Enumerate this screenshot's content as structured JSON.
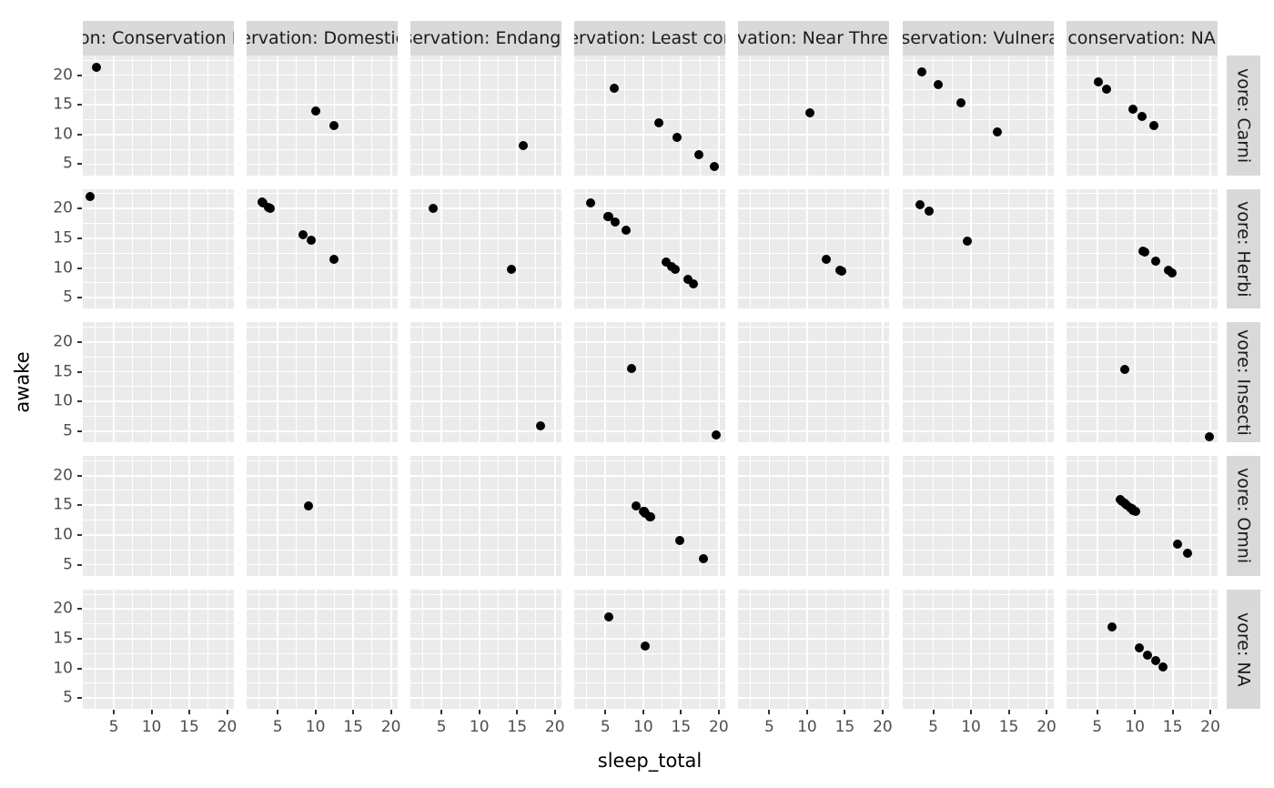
{
  "chart_data": {
    "type": "scatter",
    "title": "",
    "xlabel": "sleep_total",
    "ylabel": "awake",
    "point_shape": "filled-circle",
    "point_color": "#000000",
    "legend": "none",
    "grid": "white major and minor gridlines on gray panels",
    "xlim": [
      0.9,
      20.9
    ],
    "ylim": [
      3.13,
      23.3
    ],
    "x_ticks": [
      5,
      10,
      15,
      20
    ],
    "y_ticks": [
      5,
      10,
      15,
      20
    ],
    "x_tick_labels": [
      "5",
      "10",
      "15",
      "20"
    ],
    "y_tick_labels": [
      "5",
      "10",
      "15",
      "20"
    ],
    "x_minor_ticks": [
      2.5,
      7.5,
      12.5,
      17.5
    ],
    "y_minor_ticks": [
      7.5,
      12.5,
      17.5,
      22.5
    ],
    "facet": {
      "col_variable": "conservation",
      "row_variable": "vore",
      "col_labels": [
        "conservation: Conservation Dependent",
        "conservation: Domesticated",
        "conservation: Endangered",
        "conservation: Least concern",
        "conservation: Near Threatened",
        "conservation: Vulnerable",
        "conservation: NA"
      ],
      "row_labels": [
        "vore: Carni",
        "vore: Herbi",
        "vore: Insecti",
        "vore: Omni",
        "vore: NA"
      ]
    },
    "panels": [
      {
        "row": "vore: Carni",
        "cols": [
          {
            "points": [
              [
                2.7,
                21.3
              ]
            ]
          },
          {
            "points": [
              [
                10.1,
                13.9
              ],
              [
                12.5,
                11.5
              ]
            ]
          },
          {
            "points": [
              [
                15.8,
                8.2
              ]
            ]
          },
          {
            "points": [
              [
                6.2,
                17.8
              ],
              [
                12.1,
                11.9
              ],
              [
                14.5,
                9.5
              ],
              [
                17.4,
                6.6
              ],
              [
                19.4,
                4.6
              ]
            ]
          },
          {
            "points": [
              [
                10.4,
                13.6
              ]
            ]
          },
          {
            "points": [
              [
                3.5,
                20.5
              ],
              [
                5.6,
                18.4
              ],
              [
                8.7,
                15.3
              ],
              [
                13.5,
                10.5
              ]
            ]
          },
          {
            "points": [
              [
                5.2,
                18.8
              ],
              [
                6.3,
                17.7
              ],
              [
                9.8,
                14.2
              ],
              [
                11.0,
                13.0
              ],
              [
                12.5,
                11.5
              ]
            ]
          }
        ]
      },
      {
        "row": "vore: Herbi",
        "cols": [
          {
            "points": [
              [
                1.9,
                22.1
              ]
            ]
          },
          {
            "points": [
              [
                2.9,
                21.1
              ],
              [
                3.1,
                20.9
              ],
              [
                3.8,
                20.2
              ],
              [
                4.0,
                20.0
              ],
              [
                8.4,
                15.6
              ],
              [
                9.4,
                14.6
              ],
              [
                12.5,
                11.5
              ]
            ]
          },
          {
            "points": [
              [
                3.9,
                20.1
              ],
              [
                14.3,
                9.7
              ]
            ]
          },
          {
            "points": [
              [
                3.0,
                21.0
              ],
              [
                5.3,
                18.7
              ],
              [
                5.3,
                18.7
              ],
              [
                5.4,
                18.6
              ],
              [
                6.3,
                17.7
              ],
              [
                7.7,
                16.3
              ],
              [
                13.0,
                11.0
              ],
              [
                13.8,
                10.2
              ],
              [
                14.2,
                9.8
              ],
              [
                15.9,
                8.1
              ],
              [
                16.6,
                7.4
              ]
            ]
          },
          {
            "points": [
              [
                12.5,
                11.5
              ],
              [
                14.4,
                9.6
              ],
              [
                14.6,
                9.4
              ]
            ]
          },
          {
            "points": [
              [
                3.3,
                20.7
              ],
              [
                4.4,
                19.6
              ],
              [
                9.5,
                14.5
              ]
            ]
          },
          {
            "points": [
              [
                11.1,
                12.9
              ],
              [
                11.3,
                12.7
              ],
              [
                12.8,
                11.2
              ],
              [
                14.4,
                9.6
              ],
              [
                14.9,
                9.1
              ]
            ]
          }
        ]
      },
      {
        "row": "vore: Insecti",
        "cols": [
          {
            "points": []
          },
          {
            "points": []
          },
          {
            "points": [
              [
                18.1,
                5.9
              ]
            ]
          },
          {
            "points": [
              [
                8.4,
                15.6
              ],
              [
                19.7,
                4.3
              ]
            ]
          },
          {
            "points": []
          },
          {
            "points": []
          },
          {
            "points": [
              [
                8.6,
                15.4
              ],
              [
                19.9,
                4.1
              ]
            ]
          }
        ]
      },
      {
        "row": "vore: Omni",
        "cols": [
          {
            "points": []
          },
          {
            "points": [
              [
                9.1,
                14.9
              ]
            ]
          },
          {
            "points": []
          },
          {
            "points": [
              [
                9.1,
                14.9
              ],
              [
                10.0,
                14.0
              ],
              [
                10.1,
                13.9
              ],
              [
                10.3,
                13.7
              ],
              [
                10.3,
                13.7
              ],
              [
                10.9,
                13.1
              ],
              [
                11.0,
                13.0
              ],
              [
                14.9,
                9.1
              ],
              [
                18.0,
                6.0
              ]
            ]
          },
          {
            "points": []
          },
          {
            "points": []
          },
          {
            "points": [
              [
                8.0,
                16.0
              ],
              [
                8.3,
                15.7
              ],
              [
                8.7,
                15.3
              ],
              [
                8.9,
                15.1
              ],
              [
                9.4,
                14.6
              ],
              [
                9.6,
                14.4
              ],
              [
                9.8,
                14.2
              ],
              [
                10.1,
                13.9
              ],
              [
                15.6,
                8.4
              ],
              [
                17.0,
                7.0
              ]
            ]
          }
        ]
      },
      {
        "row": "vore: NA",
        "cols": [
          {
            "points": []
          },
          {
            "points": []
          },
          {
            "points": []
          },
          {
            "points": [
              [
                5.4,
                18.6
              ],
              [
                10.3,
                13.7
              ]
            ]
          },
          {
            "points": []
          },
          {
            "points": []
          },
          {
            "points": [
              [
                7.0,
                17.0
              ],
              [
                10.6,
                13.4
              ],
              [
                11.7,
                12.3
              ],
              [
                12.7,
                11.3
              ],
              [
                13.7,
                10.3
              ]
            ]
          }
        ]
      }
    ]
  },
  "colors": {
    "panel_background": "#EBEBEB",
    "grid_line": "#FFFFFF",
    "strip_background": "#D9D9D9",
    "strip_text": "#1A1A1A",
    "axis_text": "#4D4D4D",
    "axis_title": "#000000",
    "tick_mark": "#333333",
    "point": "#000000",
    "figure_background": "#FFFFFF"
  }
}
